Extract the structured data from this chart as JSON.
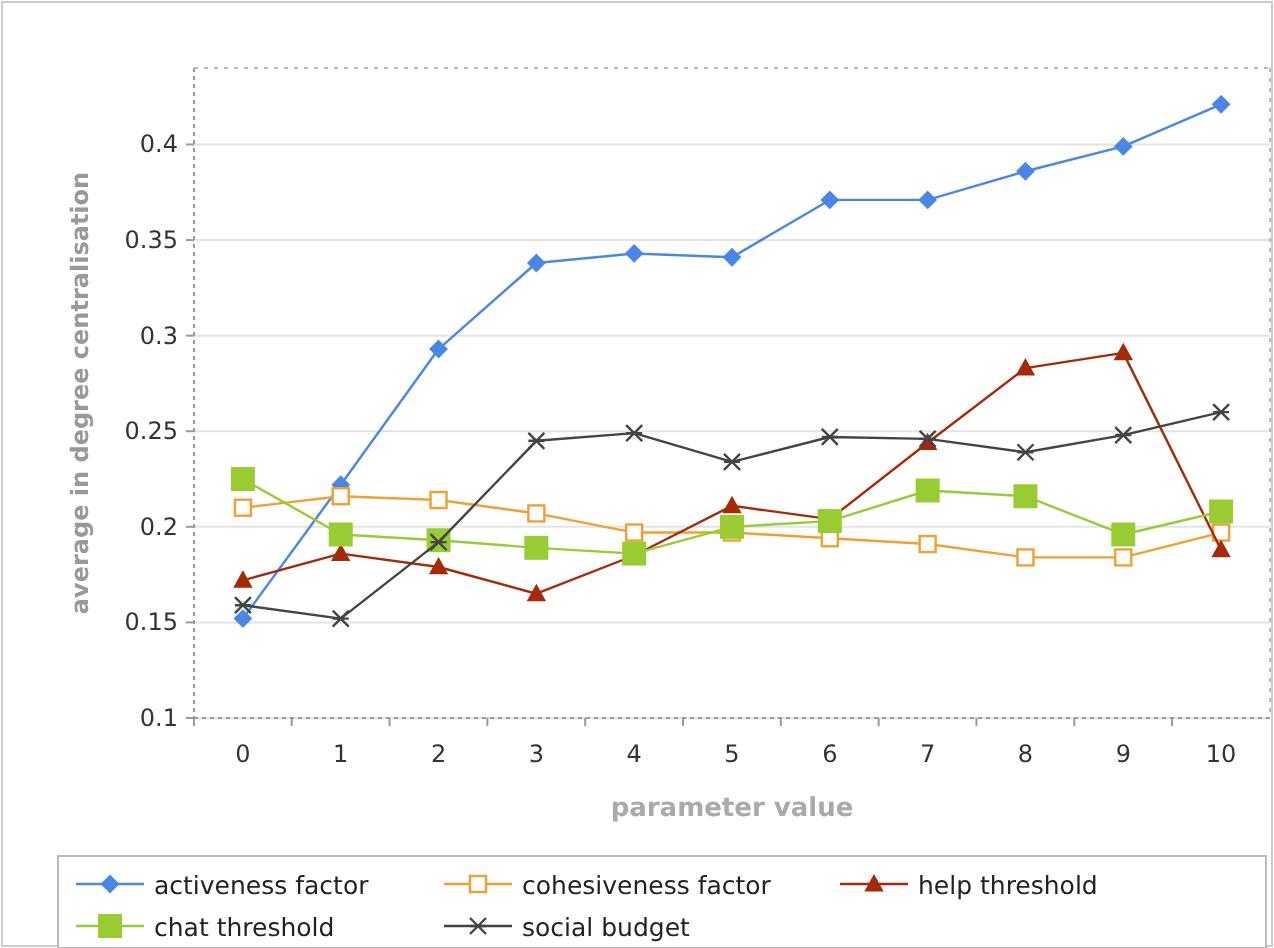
{
  "chart_data": {
    "type": "line",
    "xlabel": "parameter value",
    "ylabel": "average in degree centralisation",
    "x": [
      0,
      1,
      2,
      3,
      4,
      5,
      6,
      7,
      8,
      9,
      10
    ],
    "xlim": [
      -0.5,
      10.5
    ],
    "xticks": [
      0,
      1,
      2,
      3,
      4,
      5,
      6,
      7,
      8,
      9,
      10
    ],
    "ylim": [
      0.1,
      0.44
    ],
    "yticks": [
      0.1,
      0.15,
      0.2,
      0.25,
      0.3,
      0.35,
      0.4
    ],
    "grid": "y",
    "legend": "bottom",
    "series": [
      {
        "name": "activeness factor",
        "color": "#4a86e8",
        "marker": "diamond",
        "values": [
          0.152,
          0.222,
          0.293,
          0.338,
          0.343,
          0.341,
          0.371,
          0.371,
          0.386,
          0.399,
          0.421
        ]
      },
      {
        "name": "cohesiveness factor",
        "color": "#f0a030",
        "marker": "square",
        "values": [
          0.21,
          0.216,
          0.214,
          0.207,
          0.197,
          0.197,
          0.194,
          0.191,
          0.184,
          0.184,
          0.197
        ]
      },
      {
        "name": "help threshold",
        "color": "#a52a0a",
        "marker": "triangle",
        "values": [
          0.172,
          0.186,
          0.179,
          0.165,
          0.185,
          0.211,
          0.204,
          0.244,
          0.283,
          0.291,
          0.188
        ]
      },
      {
        "name": "chat threshold",
        "color": "#99cc33",
        "marker": "square",
        "values": [
          0.225,
          0.196,
          0.193,
          0.189,
          0.186,
          0.2,
          0.203,
          0.219,
          0.216,
          0.196,
          0.208
        ]
      },
      {
        "name": "social budget",
        "color": "#444444",
        "marker": "cross",
        "values": [
          0.159,
          0.152,
          0.192,
          0.245,
          0.249,
          0.234,
          0.247,
          0.246,
          0.239,
          0.248,
          0.26
        ]
      }
    ]
  }
}
